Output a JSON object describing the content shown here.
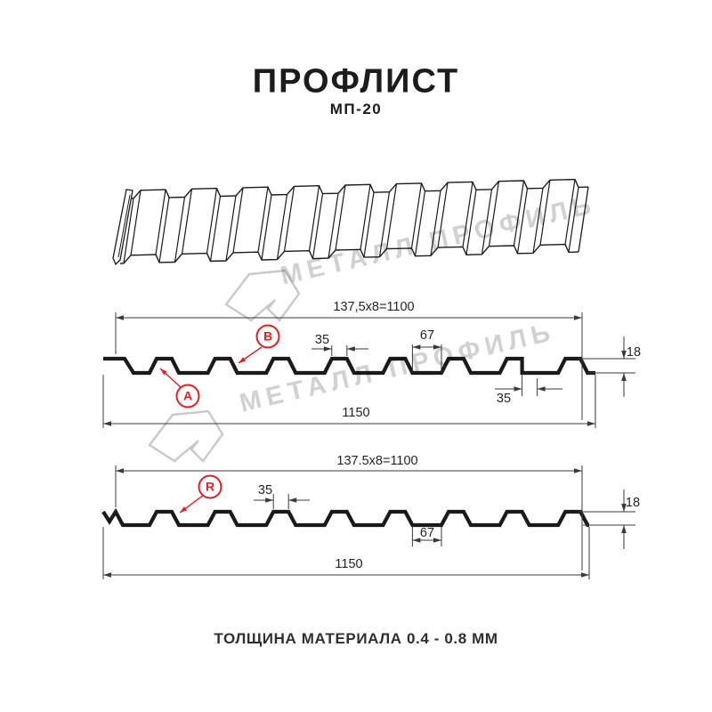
{
  "header": {
    "title": "ПРОФЛИСТ",
    "subtitle": "МП-20"
  },
  "watermark": {
    "brand": "МЕТАЛЛ ПРОФИЛЬ"
  },
  "section_top": {
    "pitch": "137,5x8=1100",
    "rib_top_width": "35",
    "rib_base_width": "67",
    "height": "18",
    "edge_width": "35",
    "total_width": "1150",
    "label_a": "A",
    "label_b": "B"
  },
  "section_bottom": {
    "pitch": "137.5x8=1100",
    "rib_top_width": "35",
    "rib_base_width": "67",
    "height": "18",
    "total_width": "1150",
    "label_r": "R"
  },
  "footer": {
    "text": "ТОЛЩИНА МАТЕРИАЛА 0.4 - 0.8 ММ"
  },
  "colors": {
    "accent_red": "#e31e24",
    "line": "#1a1a1a",
    "dim_line": "#3a3a3a",
    "watermark": "#c9c9c9"
  }
}
